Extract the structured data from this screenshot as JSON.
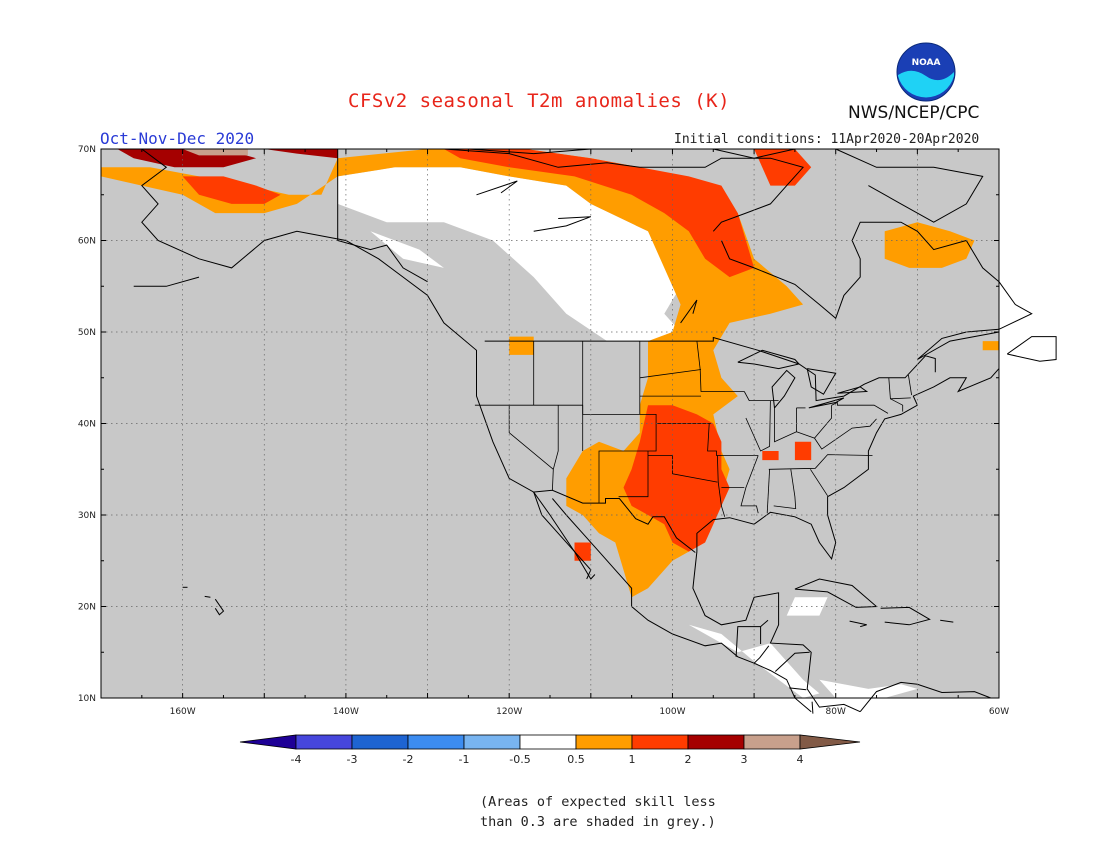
{
  "title": "CFSv2 seasonal T2m anomalies (K)",
  "period": "Oct-Nov-Dec 2020",
  "initial_conditions": "Initial conditions: 11Apr2020-20Apr2020",
  "agency": "NWS/NCEP/CPC",
  "logo_text": "NOAA",
  "footnote": "(Areas of expected skill less\nthan 0.3 are shaded in grey.)",
  "map": {
    "lat_labels": [
      "70N",
      "60N",
      "50N",
      "40N",
      "30N",
      "20N",
      "10N"
    ],
    "lon_labels": [
      "160W",
      "140W",
      "120W",
      "100W",
      "80W",
      "60W"
    ],
    "colors": {
      "no_skill": "#c8c8c8",
      "neutral": "#ffffff",
      "warm1": "#ff9d00",
      "warm2": "#ff3c00",
      "warm3": "#a50000",
      "warm4": "#c8a08c"
    }
  },
  "colorbar": {
    "labels": [
      "-4",
      "-3",
      "-2",
      "-1",
      "-0.5",
      "0.5",
      "1",
      "2",
      "3",
      "4"
    ],
    "colors": [
      "#1e0096",
      "#4646dc",
      "#1e64d2",
      "#3c8cf0",
      "#78b4f0",
      "#ffffff",
      "#ff9d00",
      "#ff3c00",
      "#a50000",
      "#c8a08c",
      "#825a46"
    ]
  }
}
